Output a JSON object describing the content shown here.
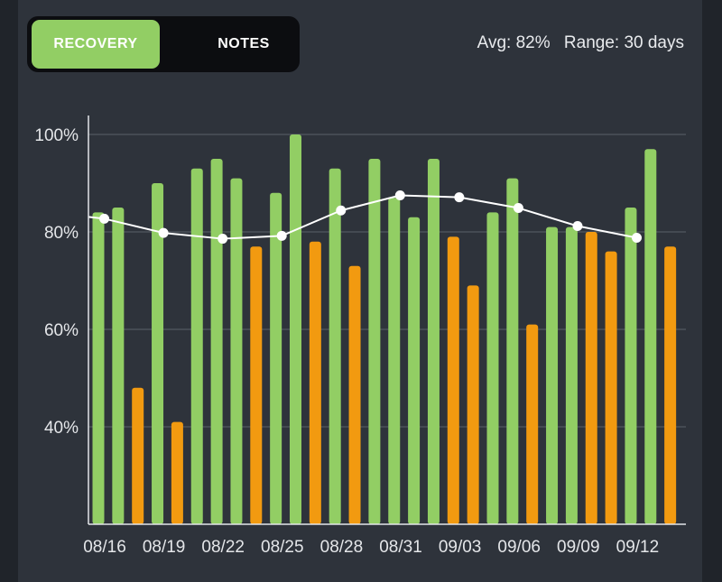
{
  "tabs": [
    {
      "label": "RECOVERY",
      "active": true
    },
    {
      "label": "NOTES",
      "active": false
    }
  ],
  "summary": {
    "avg": "Avg: 82%",
    "range": "Range: 30 days"
  },
  "colors": {
    "good": "#92ce64",
    "low": "#f29a10",
    "trend": "#ffffff",
    "background": "#2e333b"
  },
  "chart_data": {
    "type": "bar",
    "ylim": [
      20,
      100
    ],
    "yticks": [
      {
        "value": 100,
        "label": "100%"
      },
      {
        "value": 80,
        "label": "80%"
      },
      {
        "value": 60,
        "label": "60%"
      },
      {
        "value": 40,
        "label": "40%"
      }
    ],
    "grid": true,
    "xticks": [
      "08/16",
      "08/19",
      "08/22",
      "08/25",
      "08/28",
      "08/31",
      "09/03",
      "09/06",
      "09/09",
      "09/12"
    ],
    "bars": [
      {
        "value": 84,
        "status": "good"
      },
      {
        "value": 85,
        "status": "good"
      },
      {
        "value": 48,
        "status": "low"
      },
      {
        "value": 90,
        "status": "good"
      },
      {
        "value": 41,
        "status": "low"
      },
      {
        "value": 93,
        "status": "good"
      },
      {
        "value": 95,
        "status": "good"
      },
      {
        "value": 91,
        "status": "good"
      },
      {
        "value": 77,
        "status": "low"
      },
      {
        "value": 88,
        "status": "good"
      },
      {
        "value": 100,
        "status": "good"
      },
      {
        "value": 78,
        "status": "low"
      },
      {
        "value": 93,
        "status": "good"
      },
      {
        "value": 73,
        "status": "low"
      },
      {
        "value": 95,
        "status": "good"
      },
      {
        "value": 87,
        "status": "good"
      },
      {
        "value": 83,
        "status": "good"
      },
      {
        "value": 95,
        "status": "good"
      },
      {
        "value": 79,
        "status": "low"
      },
      {
        "value": 69,
        "status": "low"
      },
      {
        "value": 84,
        "status": "good"
      },
      {
        "value": 91,
        "status": "good"
      },
      {
        "value": 61,
        "status": "low"
      },
      {
        "value": 81,
        "status": "good"
      },
      {
        "value": 81,
        "status": "good"
      },
      {
        "value": 80,
        "status": "low"
      },
      {
        "value": 76,
        "status": "low"
      },
      {
        "value": 85,
        "status": "good"
      },
      {
        "value": 97,
        "status": "good"
      },
      {
        "value": 77,
        "status": "low"
      }
    ],
    "trend": [
      {
        "index": 0.3,
        "value": 82.7
      },
      {
        "index": 3.3,
        "value": 79.8
      },
      {
        "index": 6.3,
        "value": 78.6
      },
      {
        "index": 9.3,
        "value": 79.2
      },
      {
        "index": 12.3,
        "value": 84.4
      },
      {
        "index": 15.3,
        "value": 87.5
      },
      {
        "index": 18.3,
        "value": 87.1
      },
      {
        "index": 21.3,
        "value": 84.9
      },
      {
        "index": 24.3,
        "value": 81.2
      },
      {
        "index": 27.3,
        "value": 78.8
      }
    ]
  }
}
